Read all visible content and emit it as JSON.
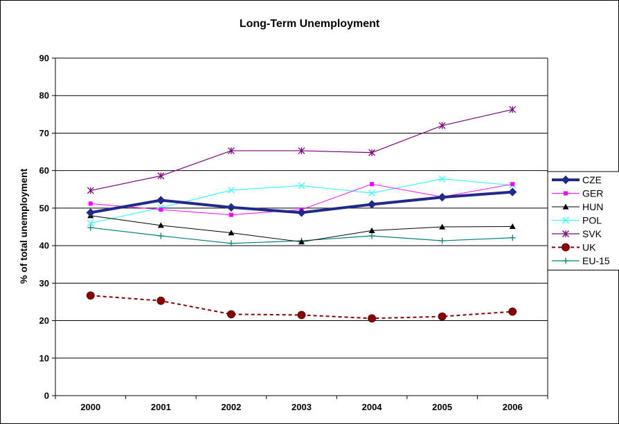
{
  "chart_data": {
    "type": "line",
    "title": "Long-Term Unemployment",
    "xlabel": "",
    "ylabel": "% of total unemployment",
    "categories": [
      "2000",
      "2001",
      "2002",
      "2003",
      "2004",
      "2005",
      "2006"
    ],
    "ylim": [
      0,
      90
    ],
    "yticks": [
      "0",
      "10",
      "20",
      "30",
      "40",
      "50",
      "60",
      "70",
      "80",
      "90"
    ],
    "grid": true,
    "legend_position": "right",
    "series": [
      {
        "name": "CZE",
        "values": [
          48.8,
          52.1,
          50.2,
          48.8,
          51.0,
          52.9,
          54.3
        ],
        "color": "#1f2a8c",
        "marker": "diamond",
        "dash": "solid",
        "width": 4
      },
      {
        "name": "GER",
        "values": [
          51.2,
          49.6,
          48.2,
          49.6,
          56.4,
          53.0,
          56.4
        ],
        "color": "#ff00ff",
        "marker": "square",
        "dash": "solid",
        "width": 1
      },
      {
        "name": "HUN",
        "values": [
          48.0,
          45.4,
          43.4,
          41.0,
          44.0,
          45.0,
          45.1
        ],
        "color": "#000000",
        "marker": "triangle",
        "dash": "solid",
        "width": 1
      },
      {
        "name": "POL",
        "values": [
          46.0,
          50.1,
          54.8,
          56.0,
          54.0,
          57.8,
          56.1
        ],
        "color": "#33ffff",
        "marker": "x",
        "dash": "solid",
        "width": 1.2
      },
      {
        "name": "SVK",
        "values": [
          54.7,
          58.6,
          65.3,
          65.3,
          64.8,
          72.0,
          76.3
        ],
        "color": "#800080",
        "marker": "asterisk",
        "dash": "solid",
        "width": 1.2
      },
      {
        "name": "UK",
        "values": [
          26.7,
          25.3,
          21.7,
          21.5,
          20.6,
          21.1,
          22.4
        ],
        "color": "#8b0000",
        "marker": "circle",
        "dash": "dashed",
        "width": 2
      },
      {
        "name": "EU-15",
        "values": [
          44.8,
          42.6,
          40.6,
          41.3,
          42.6,
          41.3,
          42.1
        ],
        "color": "#008080",
        "marker": "plus",
        "dash": "solid",
        "width": 1.2
      }
    ]
  }
}
